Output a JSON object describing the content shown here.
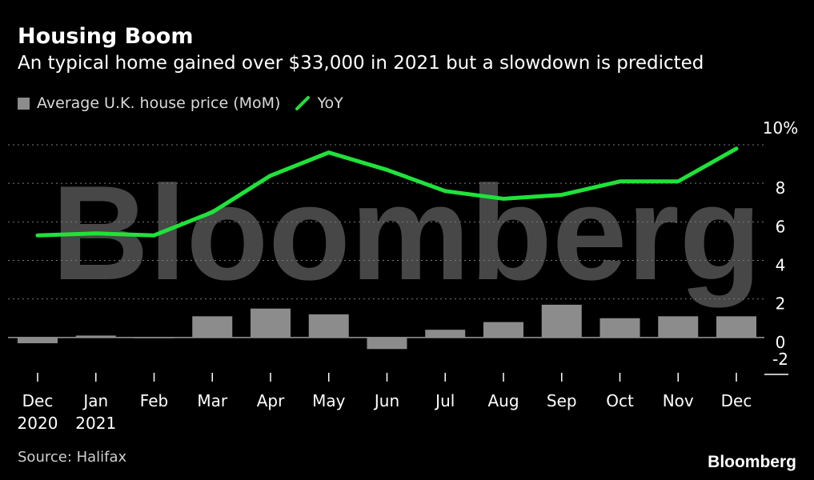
{
  "title": "Housing Boom",
  "subtitle": "An typical home gained over $33,000 in 2021 but a slowdown is predicted",
  "legend": {
    "bar_label": "Average U.K. house price (MoM)",
    "line_label": "YoY"
  },
  "source": "Source: Halifax",
  "brand": "Bloomberg",
  "watermark": "Bloomberg",
  "colors": {
    "background": "#000000",
    "bar": "#8c8c8c",
    "line": "#1fe23a",
    "grid": "#7a7a7a"
  },
  "chart_data": {
    "type": "bar",
    "categories": [
      "Dec",
      "Jan",
      "Feb",
      "Mar",
      "Apr",
      "May",
      "Jun",
      "Jul",
      "Aug",
      "Sep",
      "Oct",
      "Nov",
      "Dec"
    ],
    "category_sublabels": [
      "2020",
      "2021",
      "",
      "",
      "",
      "",
      "",
      "",
      "",
      "",
      "",
      "",
      ""
    ],
    "series": [
      {
        "name": "Average U.K. house price (MoM)",
        "type": "bar",
        "values": [
          -0.3,
          0.1,
          0.0,
          1.1,
          1.5,
          1.2,
          -0.6,
          0.4,
          0.8,
          1.7,
          1.0,
          1.1,
          1.1
        ]
      },
      {
        "name": "YoY",
        "type": "line",
        "values": [
          5.3,
          5.4,
          5.3,
          6.5,
          8.4,
          9.6,
          8.7,
          7.6,
          7.2,
          7.4,
          8.1,
          8.1,
          9.8
        ]
      }
    ],
    "y_ticks": [
      "10%",
      "8",
      "6",
      "4",
      "2",
      "0",
      "-2"
    ],
    "ylim": [
      -2,
      10
    ],
    "xlabel": "",
    "ylabel": "",
    "grid": true,
    "legend_position": "top-left"
  }
}
